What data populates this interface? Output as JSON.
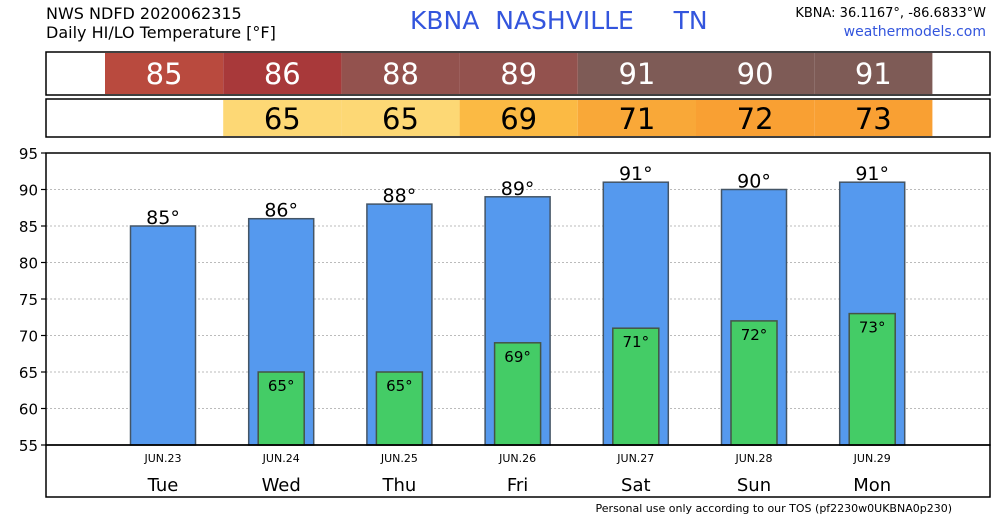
{
  "header": {
    "line1": "NWS NDFD 2020062315",
    "line2": "Daily HI/LO Temperature [°F]",
    "station": "KBNA  NASHVILLE     TN",
    "coords": "KBNA: 36.1167°, -86.6833°W",
    "site": "weathermodels.com"
  },
  "footer": "Personal use only according to our TOS (pf2230w0UKBNA0p230)",
  "colors": {
    "high_bar": "#5599ee",
    "low_bar": "#44cc66",
    "high_strip": [
      "#b94a3e",
      "#a8393a",
      "#93524e",
      "#93524e",
      "#7e5b56",
      "#7e5b56",
      "#7e5b56"
    ],
    "low_strip": [
      "#fdd875",
      "#fdd875",
      "#fbba44",
      "#f9a838",
      "#f9a033",
      "#f9a033"
    ]
  },
  "chart_data": {
    "type": "bar",
    "categories": [
      "Tue",
      "Wed",
      "Thu",
      "Fri",
      "Sat",
      "Sun",
      "Mon"
    ],
    "dates": [
      "JUN.23",
      "JUN.24",
      "JUN.25",
      "JUN.26",
      "JUN.27",
      "JUN.28",
      "JUN.29"
    ],
    "series": [
      {
        "values": [
          85,
          86,
          88,
          89,
          91,
          90,
          91
        ]
      },
      {
        "values": [
          null,
          65,
          65,
          69,
          71,
          72,
          73
        ]
      }
    ],
    "high_labels": [
      "85°",
      "86°",
      "88°",
      "89°",
      "91°",
      "90°",
      "91°"
    ],
    "low_labels": [
      "",
      "65°",
      "65°",
      "69°",
      "71°",
      "72°",
      "73°"
    ],
    "high_strip_labels": [
      "85",
      "86",
      "88",
      "89",
      "91",
      "90",
      "91"
    ],
    "low_strip_labels": [
      "",
      "65",
      "65",
      "69",
      "71",
      "72",
      "73"
    ],
    "ylim": [
      55,
      95
    ],
    "yticks": [
      "55",
      "60",
      "65",
      "70",
      "75",
      "80",
      "85",
      "90",
      "95"
    ],
    "grid": true
  }
}
